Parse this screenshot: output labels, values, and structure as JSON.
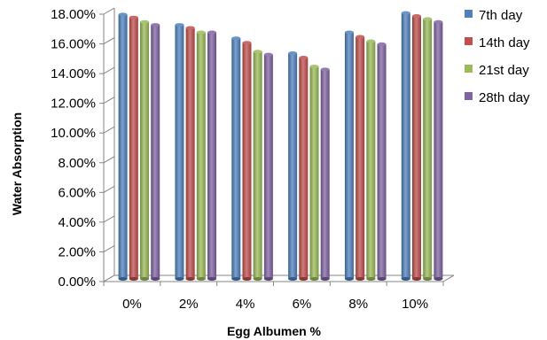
{
  "chart_data": {
    "type": "bar",
    "title": "",
    "xlabel": "Egg Albumen %",
    "ylabel": "Water Absorption",
    "categories": [
      "0%",
      "2%",
      "4%",
      "6%",
      "8%",
      "10%"
    ],
    "y_ticks": [
      "0.00%",
      "2.00%",
      "4.00%",
      "6.00%",
      "8.00%",
      "10.00%",
      "12.00%",
      "14.00%",
      "16.00%",
      "18.00%"
    ],
    "ylim": [
      0,
      18
    ],
    "grid": false,
    "legend_position": "right",
    "series": [
      {
        "name": "7th day",
        "color": "#4f81bd",
        "values": [
          17.8,
          17.1,
          16.2,
          15.2,
          16.6,
          17.9
        ]
      },
      {
        "name": "14th day",
        "color": "#c0504d",
        "values": [
          17.6,
          16.9,
          15.9,
          14.9,
          16.3,
          17.7
        ]
      },
      {
        "name": "21st day",
        "color": "#9bbb59",
        "values": [
          17.3,
          16.6,
          15.3,
          14.3,
          16.0,
          17.5
        ]
      },
      {
        "name": "28th day",
        "color": "#8064a2",
        "values": [
          17.1,
          16.6,
          15.1,
          14.1,
          15.8,
          17.3
        ]
      }
    ]
  }
}
